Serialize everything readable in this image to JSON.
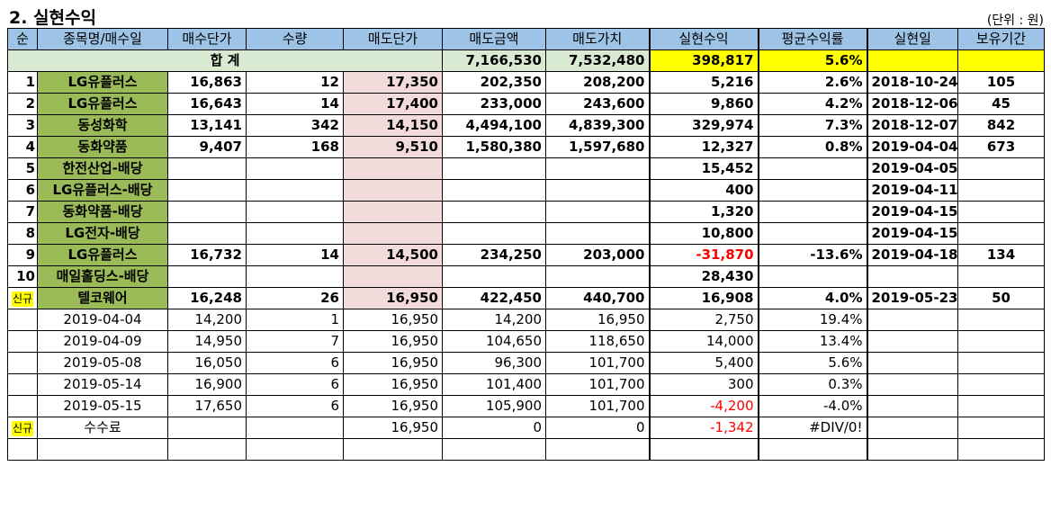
{
  "title": "2. 실현수익",
  "unit": "(단위 : 원)",
  "headers": [
    "순",
    "종목명/매수일",
    "매수단가",
    "수량",
    "매도단가",
    "매도금액",
    "매도가치",
    "실현수익",
    "평균수익률",
    "실현일",
    "보유기간"
  ],
  "total": {
    "label": "합 계",
    "sell_amount": "7,166,530",
    "sell_value": "7,532,480",
    "profit": "398,817",
    "avg_rate": "5.6%"
  },
  "rows": [
    {
      "no": "1",
      "name": "LG유플러스",
      "buy": "16,863",
      "qty": "12",
      "sell": "17,350",
      "amount": "202,350",
      "value": "208,200",
      "profit": "5,216",
      "rate": "2.6%",
      "date": "2018-10-24",
      "hold": "105"
    },
    {
      "no": "2",
      "name": "LG유플러스",
      "buy": "16,643",
      "qty": "14",
      "sell": "17,400",
      "amount": "233,000",
      "value": "243,600",
      "profit": "9,860",
      "rate": "4.2%",
      "date": "2018-12-06",
      "hold": "45"
    },
    {
      "no": "3",
      "name": "동성화학",
      "buy": "13,141",
      "qty": "342",
      "sell": "14,150",
      "amount": "4,494,100",
      "value": "4,839,300",
      "profit": "329,974",
      "rate": "7.3%",
      "date": "2018-12-07",
      "hold": "842"
    },
    {
      "no": "4",
      "name": "동화약품",
      "buy": "9,407",
      "qty": "168",
      "sell": "9,510",
      "amount": "1,580,380",
      "value": "1,597,680",
      "profit": "12,327",
      "rate": "0.8%",
      "date": "2019-04-04",
      "hold": "673"
    },
    {
      "no": "5",
      "name": "한전산업-배당",
      "buy": "",
      "qty": "",
      "sell": "",
      "amount": "",
      "value": "",
      "profit": "15,452",
      "rate": "",
      "date": "2019-04-05",
      "hold": ""
    },
    {
      "no": "6",
      "name": "LG유플러스-배당",
      "buy": "",
      "qty": "",
      "sell": "",
      "amount": "",
      "value": "",
      "profit": "400",
      "rate": "",
      "date": "2019-04-11",
      "hold": ""
    },
    {
      "no": "7",
      "name": "동화약품-배당",
      "buy": "",
      "qty": "",
      "sell": "",
      "amount": "",
      "value": "",
      "profit": "1,320",
      "rate": "",
      "date": "2019-04-15",
      "hold": ""
    },
    {
      "no": "8",
      "name": "LG전자-배당",
      "buy": "",
      "qty": "",
      "sell": "",
      "amount": "",
      "value": "",
      "profit": "10,800",
      "rate": "",
      "date": "2019-04-15",
      "hold": ""
    },
    {
      "no": "9",
      "name": "LG유플러스",
      "buy": "16,732",
      "qty": "14",
      "sell": "14,500",
      "amount": "234,250",
      "value": "203,000",
      "profit": "-31,870",
      "rate": "-13.6%",
      "date": "2019-04-18",
      "hold": "134"
    },
    {
      "no": "10",
      "name": "매일홀딩스-배당",
      "buy": "",
      "qty": "",
      "sell": "",
      "amount": "",
      "value": "",
      "profit": "28,430",
      "rate": "",
      "date": "",
      "hold": ""
    },
    {
      "no": "신규",
      "name": "텔코웨어",
      "buy": "16,248",
      "qty": "26",
      "sell": "16,950",
      "amount": "422,450",
      "value": "440,700",
      "profit": "16,908",
      "rate": "4.0%",
      "date": "2019-05-23",
      "hold": "50"
    }
  ],
  "sub_rows": [
    {
      "no": "",
      "name": "2019-04-04",
      "buy": "14,200",
      "qty": "1",
      "sell": "16,950",
      "amount": "14,200",
      "value": "16,950",
      "profit": "2,750",
      "rate": "19.4%"
    },
    {
      "no": "",
      "name": "2019-04-09",
      "buy": "14,950",
      "qty": "7",
      "sell": "16,950",
      "amount": "104,650",
      "value": "118,650",
      "profit": "14,000",
      "rate": "13.4%"
    },
    {
      "no": "",
      "name": "2019-05-08",
      "buy": "16,050",
      "qty": "6",
      "sell": "16,950",
      "amount": "96,300",
      "value": "101,700",
      "profit": "5,400",
      "rate": "5.6%"
    },
    {
      "no": "",
      "name": "2019-05-14",
      "buy": "16,900",
      "qty": "6",
      "sell": "16,950",
      "amount": "101,400",
      "value": "101,700",
      "profit": "300",
      "rate": "0.3%"
    },
    {
      "no": "",
      "name": "2019-05-15",
      "buy": "17,650",
      "qty": "6",
      "sell": "16,950",
      "amount": "105,900",
      "value": "101,700",
      "profit": "-4,200",
      "rate": "-4.0%"
    },
    {
      "no": "신규",
      "name": "수수료",
      "buy": "",
      "qty": "",
      "sell": "16,950",
      "amount": "0",
      "value": "0",
      "profit": "-1,342",
      "rate": "#DIV/0!"
    }
  ],
  "colors": {
    "header": "#9dc3e6",
    "name_cell": "#9bbb59",
    "sell_cell": "#f2dcdb",
    "highlight": "#ffff00",
    "negative": "#ff0000"
  }
}
